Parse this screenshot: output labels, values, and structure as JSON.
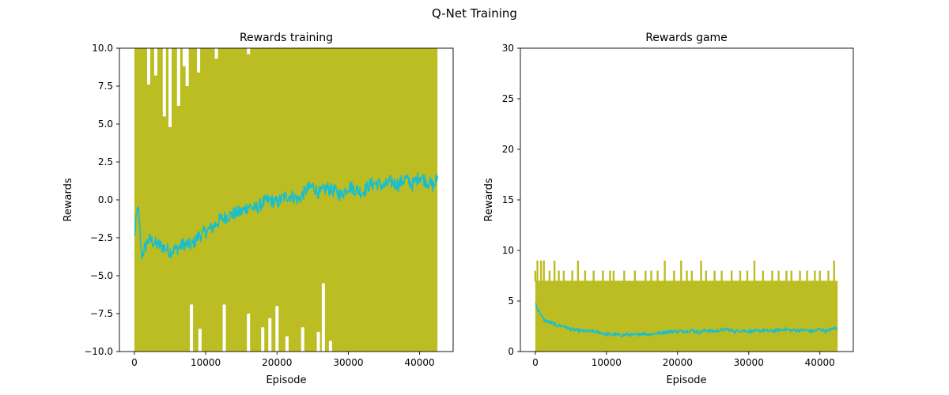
{
  "figure": {
    "suptitle": "Q-Net Training"
  },
  "chart_data": [
    {
      "type": "line",
      "title": "Rewards training",
      "xlabel": "Episode",
      "ylabel": "Rewards",
      "xlim": [
        -2100,
        44700
      ],
      "ylim": [
        -10.0,
        10.0
      ],
      "xticks": [
        0,
        10000,
        20000,
        30000,
        40000
      ],
      "xtick_labels": [
        "0",
        "10000",
        "20000",
        "30000",
        "40000"
      ],
      "yticks": [
        -10.0,
        -7.5,
        -5.0,
        -2.5,
        0.0,
        2.5,
        5.0,
        7.5,
        10.0
      ],
      "ytick_labels": [
        "−10.0",
        "−7.5",
        "−5.0",
        "−2.5",
        "0.0",
        "2.5",
        "5.0",
        "7.5",
        "10.0"
      ],
      "grid": false,
      "series": [
        {
          "kind": "raw-dense",
          "color": "#bcbd22",
          "x_range": [
            0,
            42500
          ],
          "band": {
            "x": [
              0,
              42500
            ],
            "low": -10.0,
            "high": 10.0
          },
          "upper_notches": [
            {
              "x": 5000,
              "y": 4.8
            },
            {
              "x": 4200,
              "y": 5.5
            },
            {
              "x": 6200,
              "y": 6.2
            },
            {
              "x": 7400,
              "y": 7.5
            },
            {
              "x": 2000,
              "y": 7.6
            },
            {
              "x": 3000,
              "y": 8.2
            },
            {
              "x": 9000,
              "y": 8.4
            },
            {
              "x": 11500,
              "y": 9.3
            },
            {
              "x": 7000,
              "y": 8.8
            },
            {
              "x": 16000,
              "y": 9.6
            }
          ],
          "lower_notches": [
            {
              "x": 8000,
              "y": -6.9
            },
            {
              "x": 9200,
              "y": -8.5
            },
            {
              "x": 12600,
              "y": -6.9
            },
            {
              "x": 16000,
              "y": -7.5
            },
            {
              "x": 18000,
              "y": -8.4
            },
            {
              "x": 19000,
              "y": -7.8
            },
            {
              "x": 20000,
              "y": -7.0
            },
            {
              "x": 21400,
              "y": -9.0
            },
            {
              "x": 23600,
              "y": -8.4
            },
            {
              "x": 25800,
              "y": -8.7
            },
            {
              "x": 26500,
              "y": -5.5
            },
            {
              "x": 27500,
              "y": -9.3
            }
          ]
        },
        {
          "kind": "moving-average",
          "color": "#17becf",
          "x": [
            0,
            500,
            1000,
            2000,
            3000,
            4000,
            5000,
            6000,
            7000,
            8000,
            9000,
            10000,
            11000,
            12000,
            13000,
            14000,
            15000,
            16000,
            17000,
            18000,
            19000,
            20000,
            21000,
            22000,
            23000,
            24000,
            25000,
            26000,
            27000,
            28000,
            29000,
            30000,
            31000,
            32000,
            33000,
            34000,
            35000,
            36000,
            37000,
            38000,
            39000,
            40000,
            41000,
            42000,
            42500
          ],
          "y": [
            -2.5,
            -0.3,
            -3.7,
            -2.6,
            -2.9,
            -3.1,
            -3.4,
            -3.2,
            -2.9,
            -3.0,
            -2.4,
            -2.1,
            -1.8,
            -1.3,
            -1.1,
            -0.9,
            -0.8,
            -0.4,
            -0.6,
            -0.2,
            0.0,
            -0.2,
            0.2,
            0.3,
            0.0,
            0.6,
            0.9,
            0.4,
            0.8,
            0.6,
            0.3,
            0.9,
            0.7,
            0.5,
            1.0,
            1.1,
            0.9,
            1.2,
            1.0,
            1.4,
            1.0,
            1.6,
            1.2,
            0.9,
            1.5
          ],
          "noise": 0.45
        }
      ]
    },
    {
      "type": "line",
      "title": "Rewards game",
      "xlabel": "Episode",
      "ylabel": "Rewards",
      "xlim": [
        -2100,
        44700
      ],
      "ylim": [
        0,
        30
      ],
      "xticks": [
        0,
        10000,
        20000,
        30000,
        40000
      ],
      "xtick_labels": [
        "0",
        "10000",
        "20000",
        "30000",
        "40000"
      ],
      "yticks": [
        0,
        5,
        10,
        15,
        20,
        25,
        30
      ],
      "ytick_labels": [
        "0",
        "5",
        "10",
        "15",
        "20",
        "25",
        "30"
      ],
      "grid": false,
      "series": [
        {
          "kind": "raw-dense",
          "color": "#bcbd22",
          "x_range": [
            0,
            42500
          ],
          "band": {
            "x": [
              0,
              42500
            ],
            "low": 0,
            "high": 7
          },
          "spike_tops": [
            {
              "x": 0,
              "y": 8
            },
            {
              "x": 300,
              "y": 9
            },
            {
              "x": 800,
              "y": 9
            },
            {
              "x": 1200,
              "y": 9
            },
            {
              "x": 2000,
              "y": 8
            },
            {
              "x": 2700,
              "y": 9
            },
            {
              "x": 3300,
              "y": 8
            },
            {
              "x": 4000,
              "y": 8
            },
            {
              "x": 5200,
              "y": 8
            },
            {
              "x": 6000,
              "y": 9
            },
            {
              "x": 7000,
              "y": 8
            },
            {
              "x": 8200,
              "y": 8
            },
            {
              "x": 9500,
              "y": 8
            },
            {
              "x": 10500,
              "y": 8
            },
            {
              "x": 11000,
              "y": 8
            },
            {
              "x": 12500,
              "y": 8
            },
            {
              "x": 14000,
              "y": 8
            },
            {
              "x": 15500,
              "y": 8
            },
            {
              "x": 16300,
              "y": 8
            },
            {
              "x": 17200,
              "y": 8
            },
            {
              "x": 18200,
              "y": 9
            },
            {
              "x": 19500,
              "y": 8
            },
            {
              "x": 20500,
              "y": 9
            },
            {
              "x": 21300,
              "y": 8
            },
            {
              "x": 22000,
              "y": 8
            },
            {
              "x": 23300,
              "y": 9
            },
            {
              "x": 24000,
              "y": 8
            },
            {
              "x": 25200,
              "y": 8
            },
            {
              "x": 26200,
              "y": 8
            },
            {
              "x": 27600,
              "y": 8
            },
            {
              "x": 28800,
              "y": 8
            },
            {
              "x": 29800,
              "y": 8
            },
            {
              "x": 30800,
              "y": 9
            },
            {
              "x": 32000,
              "y": 8
            },
            {
              "x": 33300,
              "y": 8
            },
            {
              "x": 34200,
              "y": 8
            },
            {
              "x": 35300,
              "y": 8
            },
            {
              "x": 36000,
              "y": 8
            },
            {
              "x": 37200,
              "y": 8
            },
            {
              "x": 38200,
              "y": 8
            },
            {
              "x": 39300,
              "y": 8
            },
            {
              "x": 40000,
              "y": 8
            },
            {
              "x": 41200,
              "y": 8
            },
            {
              "x": 42000,
              "y": 9
            }
          ]
        },
        {
          "kind": "moving-average",
          "color": "#17becf",
          "x": [
            0,
            300,
            700,
            1000,
            1500,
            2000,
            3000,
            4000,
            5000,
            6000,
            7000,
            8000,
            9000,
            10000,
            11000,
            12000,
            13000,
            14000,
            15000,
            16000,
            17000,
            18000,
            19000,
            20000,
            21000,
            22000,
            23000,
            24000,
            25000,
            26000,
            27000,
            28000,
            29000,
            30000,
            31000,
            32000,
            33000,
            34000,
            35000,
            36000,
            37000,
            38000,
            39000,
            40000,
            41000,
            42000,
            42500
          ],
          "y": [
            4.9,
            4.2,
            3.8,
            3.3,
            3.0,
            2.9,
            2.6,
            2.5,
            2.2,
            2.1,
            2.0,
            2.0,
            1.9,
            1.7,
            1.7,
            1.6,
            1.7,
            1.6,
            1.8,
            1.7,
            1.8,
            1.9,
            2.0,
            2.0,
            2.0,
            2.1,
            1.9,
            2.1,
            2.0,
            2.1,
            2.2,
            2.0,
            2.1,
            2.0,
            2.0,
            2.1,
            2.0,
            2.1,
            2.2,
            2.1,
            2.1,
            2.1,
            2.0,
            2.2,
            2.0,
            2.3,
            2.3
          ],
          "noise": 0.18
        }
      ]
    }
  ]
}
